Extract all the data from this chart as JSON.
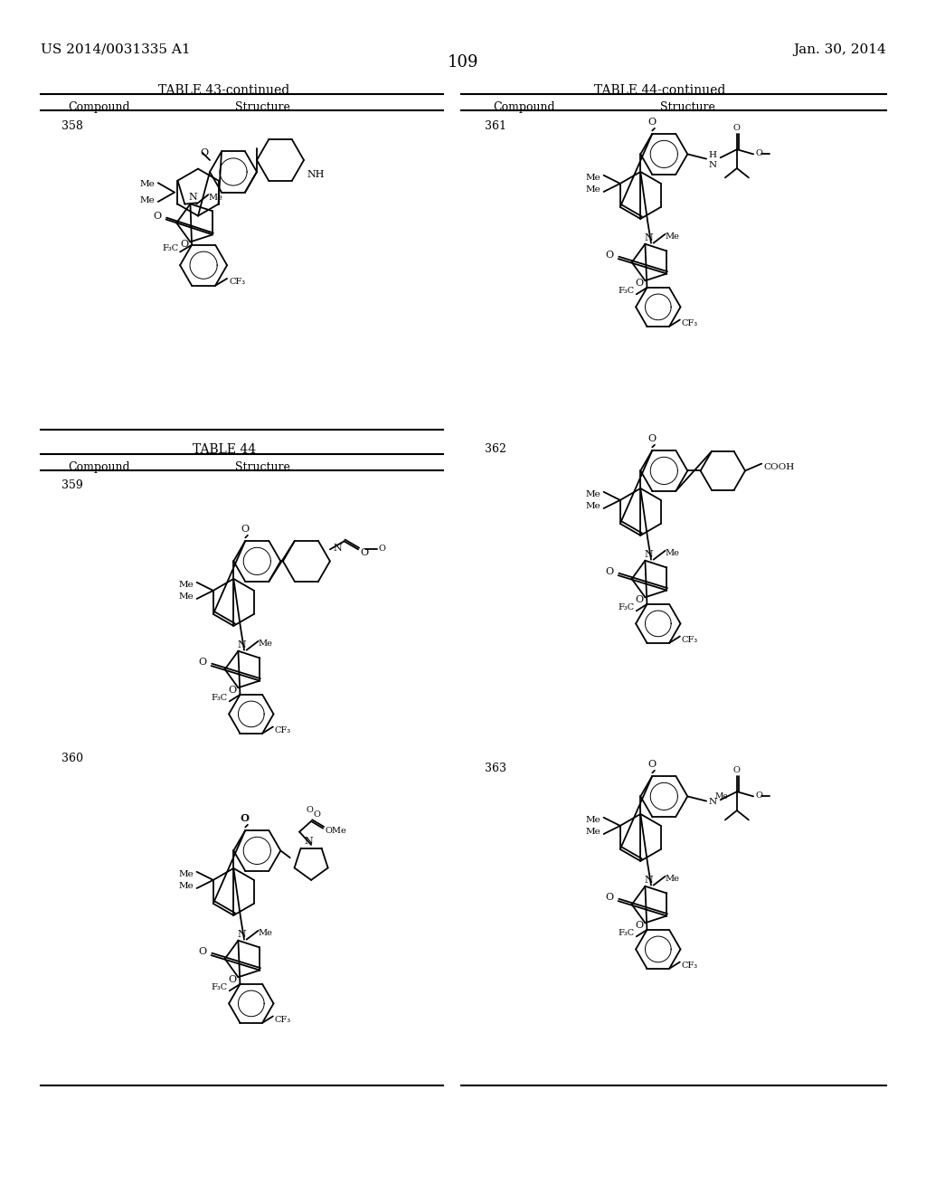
{
  "page_header_left": "US 2014/0031335 A1",
  "page_header_right": "Jan. 30, 2014",
  "page_number": "109",
  "table43_title": "TABLE 43-continued",
  "table44_title": "TABLE 44-continued",
  "table44_new_title": "TABLE 44",
  "col_compound": "Compound",
  "col_structure": "Structure",
  "compound_ids": [
    "358",
    "359",
    "360",
    "361",
    "362",
    "363"
  ],
  "bg": "#ffffff",
  "fg": "#000000"
}
